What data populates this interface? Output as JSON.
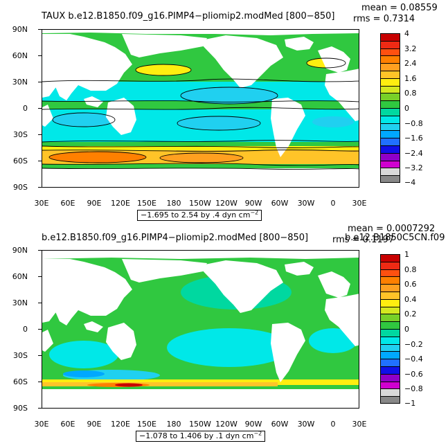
{
  "panels": [
    {
      "title": "TAUX  b.e12.B1850.f09_g16.PIMP4−pliomip2.modMed  [800−850]",
      "mean_label": "mean = 0.08559",
      "rms_label": "rms = 0.7314",
      "range_text": "−1.695 to 2.54 by .4 dyn cm",
      "range_exp": "−2",
      "lat_labels": [
        "90N",
        "60N",
        "30N",
        "0",
        "30S",
        "60S",
        "90S"
      ],
      "lon_labels": [
        "30E",
        "60E",
        "90E",
        "120E",
        "150E",
        "180",
        "150W",
        "120W",
        "90W",
        "60W",
        "30W",
        "0",
        "30E"
      ],
      "colorbar_labels": [
        "4",
        "3.2",
        "2.4",
        "1.6",
        "0.8",
        "0",
        "−0.8",
        "−1.6",
        "−2.4",
        "−3.2",
        "−4"
      ],
      "colorbar_colors": [
        "#c80000",
        "#ee2a14",
        "#ff5010",
        "#ff8000",
        "#ffa020",
        "#ffc428",
        "#ffee10",
        "#d4e820",
        "#78d028",
        "#30c840",
        "#00d8a0",
        "#00e8e8",
        "#20d0f0",
        "#00a8ff",
        "#2070ff",
        "#1010e8",
        "#9000c8",
        "#d000d0",
        "#d8d8d8",
        "#888888"
      ]
    },
    {
      "title": "b.e12.B1850.f09_g16.PIMP4−pliomip2.modMed  [800−850]",
      "mean_label": "mean = 0.0007292",
      "rms_label": "rms = 0.1197",
      "overlap_label": "b.e12.B1850C5CN.f09",
      "range_text": "−1.078 to 1.406 by .1 dyn cm",
      "range_exp": "−2",
      "lat_labels": [
        "90N",
        "60N",
        "30N",
        "0",
        "30S",
        "60S",
        "90S"
      ],
      "lon_labels": [
        "30E",
        "60E",
        "90E",
        "120E",
        "150E",
        "180",
        "150W",
        "120W",
        "90W",
        "60W",
        "30W",
        "0",
        "30E"
      ],
      "colorbar_labels": [
        "1",
        "0.8",
        "0.6",
        "0.4",
        "0.2",
        "0",
        "−0.2",
        "−0.4",
        "−0.6",
        "−0.8",
        "−1"
      ],
      "colorbar_colors": [
        "#c80000",
        "#ee2a14",
        "#ff5010",
        "#ff8000",
        "#ffa020",
        "#ffc428",
        "#ffee10",
        "#d4e820",
        "#78d028",
        "#30c840",
        "#00d8a0",
        "#00e8e8",
        "#20d0f0",
        "#00a8ff",
        "#2070ff",
        "#1010e8",
        "#9000c8",
        "#d000d0",
        "#d8d8d8",
        "#888888"
      ]
    }
  ]
}
